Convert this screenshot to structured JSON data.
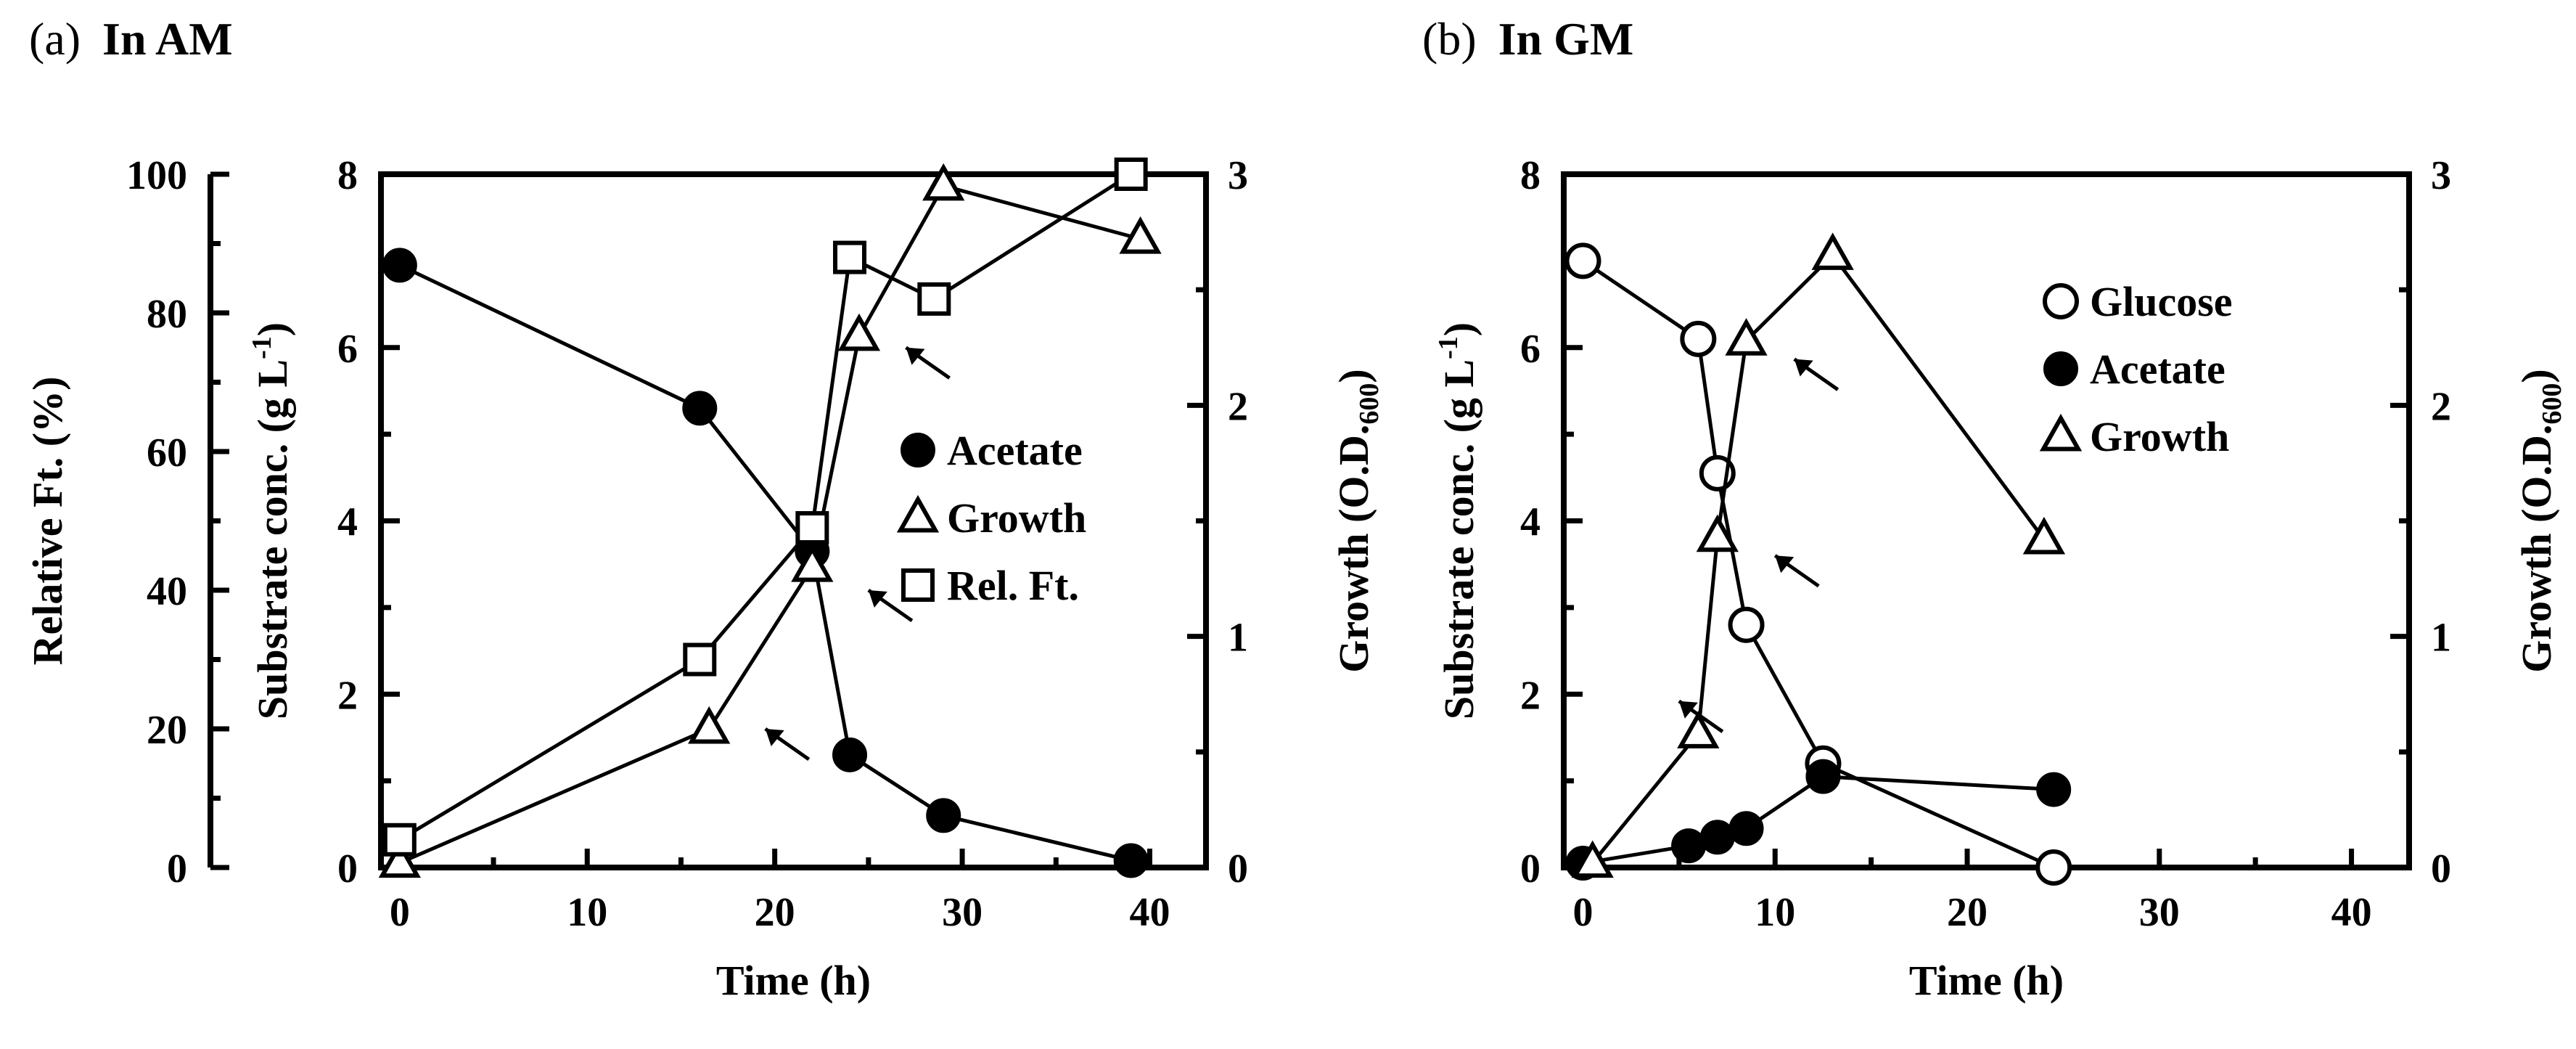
{
  "chart_data": [
    {
      "type": "line",
      "panel_label": "(a)",
      "title": "In AM",
      "xlabel": "Time (h)",
      "ylabel_left": "Substrate conc. (g L-1)",
      "ylabel_outer": "Relative Ft. (%)",
      "ylabel_right": "Growth (O.D.600)",
      "xlim": [
        -1,
        43
      ],
      "ylim_left": [
        0,
        8
      ],
      "ylim_outer": [
        0,
        100
      ],
      "ylim_right": [
        0,
        3
      ],
      "xticks": [
        0,
        10,
        20,
        30,
        40
      ],
      "yticks_left": [
        0,
        2,
        4,
        6,
        8
      ],
      "yticks_outer": [
        0,
        20,
        40,
        60,
        80,
        100
      ],
      "yticks_right": [
        0,
        1,
        2,
        3
      ],
      "legend_position": "center-right",
      "series": [
        {
          "name": "Acetate",
          "marker": "filled-circle",
          "axis": "left",
          "x": [
            0,
            16,
            22,
            24,
            29,
            39
          ],
          "values": [
            6.95,
            5.3,
            3.65,
            1.3,
            0.6,
            0.08
          ]
        },
        {
          "name": "Growth",
          "marker": "open-triangle",
          "axis": "right",
          "x": [
            0,
            16.5,
            22,
            24.5,
            29,
            39.5
          ],
          "values": [
            0.02,
            0.6,
            1.3,
            2.3,
            2.95,
            2.72
          ]
        },
        {
          "name": "Rel. Ft.",
          "marker": "open-square",
          "axis": "outer",
          "x": [
            0,
            16,
            22,
            24,
            28.5,
            39
          ],
          "values": [
            4,
            30,
            49,
            88,
            82,
            100
          ]
        }
      ],
      "arrows": [
        {
          "x": 19.5,
          "value": 0.6,
          "axis": "right"
        },
        {
          "x": 25,
          "value": 1.2,
          "axis": "right"
        },
        {
          "x": 27,
          "value": 2.25,
          "axis": "right"
        }
      ]
    },
    {
      "type": "line",
      "panel_label": "(b)",
      "title": "In GM",
      "xlabel": "Time (h)",
      "ylabel_left": "Substrate conc. (g L-1)",
      "ylabel_right": "Growth (O.D.600)",
      "xlim": [
        -1,
        43
      ],
      "ylim_left": [
        0,
        8
      ],
      "ylim_right": [
        0,
        3
      ],
      "xticks": [
        0,
        10,
        20,
        30,
        40
      ],
      "yticks_left": [
        0,
        2,
        4,
        6,
        8
      ],
      "yticks_right": [
        0,
        1,
        2,
        3
      ],
      "legend_position": "top-right",
      "series": [
        {
          "name": "Glucose",
          "marker": "open-circle",
          "axis": "left",
          "x": [
            0,
            6,
            7,
            8.5,
            12.5,
            24.5
          ],
          "values": [
            7.0,
            6.1,
            4.55,
            2.8,
            1.2,
            0.0
          ]
        },
        {
          "name": "Acetate",
          "marker": "filled-circle",
          "axis": "left",
          "x": [
            0,
            5.5,
            7,
            8.5,
            12.5,
            24.5
          ],
          "values": [
            0.05,
            0.25,
            0.35,
            0.45,
            1.05,
            0.9
          ]
        },
        {
          "name": "Growth",
          "marker": "open-triangle",
          "axis": "right",
          "x": [
            0.5,
            6,
            7,
            8.5,
            13,
            24
          ],
          "values": [
            0.02,
            0.58,
            1.43,
            2.28,
            2.65,
            1.42
          ]
        }
      ],
      "arrows": [
        {
          "x": 5,
          "value": 0.72,
          "axis": "right"
        },
        {
          "x": 10,
          "value": 1.35,
          "axis": "right"
        },
        {
          "x": 11,
          "value": 2.2,
          "axis": "right"
        }
      ]
    }
  ]
}
